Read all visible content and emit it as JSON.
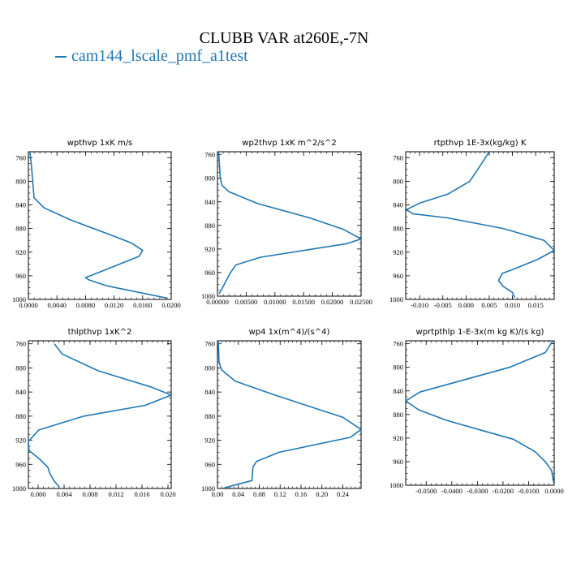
{
  "title": "CLUBB VAR at260E,-7N",
  "legend": {
    "label": "cam144_lscale_pmf_a1test",
    "color": "#1f77b4"
  },
  "chart_data": [
    {
      "type": "line",
      "title": "wpthvp  1xK m/s",
      "xlim": [
        0.0,
        0.02
      ],
      "ylim": [
        1000,
        750
      ],
      "y_axis": "inverted",
      "xticks": [
        0.0,
        0.004,
        0.008,
        0.012,
        0.016,
        0.02
      ],
      "xtick_labels": [
        "0.0000",
        "0.0040",
        "0.0080",
        "0.0120",
        "0.0160",
        "0.0200"
      ],
      "yticks": [
        760,
        800,
        840,
        880,
        920,
        960,
        1000
      ],
      "ytick_labels": [
        "760",
        "800",
        "840",
        "880",
        "920",
        "960",
        "1000"
      ],
      "series": [
        {
          "color": "#1f77b4",
          "x": [
            0.0002,
            0.0004,
            0.0008,
            0.0022,
            0.006,
            0.012,
            0.0145,
            0.016,
            0.0155,
            0.0095,
            0.008,
            0.0085,
            0.011,
            0.0195
          ],
          "y": [
            750,
            770,
            828,
            845,
            866,
            893,
            905,
            917,
            927,
            956,
            963,
            967,
            977,
            998
          ]
        }
      ]
    },
    {
      "type": "line",
      "title": "wp2thvp  1xK m^2/s^2",
      "xlim": [
        0.0,
        0.025
      ],
      "ylim": [
        1000,
        755
      ],
      "y_axis": "inverted",
      "xticks": [
        0.0,
        0.005,
        0.01,
        0.015,
        0.02,
        0.025
      ],
      "xtick_labels": [
        "0.00000",
        "0.00500",
        "0.01000",
        "0.01500",
        "0.02000",
        "0.02500"
      ],
      "yticks": [
        760,
        800,
        840,
        880,
        920,
        960,
        1000
      ],
      "ytick_labels": [
        "760",
        "800",
        "840",
        "880",
        "920",
        "960",
        "1000"
      ],
      "series": [
        {
          "color": "#1f77b4",
          "x": [
            0.0002,
            0.0003,
            0.0005,
            0.0008,
            0.002,
            0.007,
            0.016,
            0.022,
            0.025,
            0.0225,
            0.0075,
            0.0032,
            0.0022,
            0.0013,
            0.0003
          ],
          "y": [
            755,
            770,
            800,
            812,
            823,
            843,
            867,
            887,
            903,
            911,
            934,
            947,
            961,
            978,
            996
          ]
        }
      ]
    },
    {
      "type": "line",
      "title": "rtpthvp  1E-3x(kg/kg) K",
      "xlim": [
        -0.013,
        0.019
      ],
      "ylim": [
        1000,
        750
      ],
      "y_axis": "inverted",
      "xticks": [
        -0.01,
        -0.005,
        0.0,
        0.005,
        0.01,
        0.015
      ],
      "xtick_labels": [
        "-0.010",
        "-0.005",
        "0.000",
        "0.005",
        "0.010",
        "0.015"
      ],
      "yticks": [
        760,
        800,
        840,
        880,
        920,
        960,
        1000
      ],
      "ytick_labels": [
        "760",
        "800",
        "840",
        "880",
        "920",
        "960",
        "1000"
      ],
      "series": [
        {
          "color": "#1f77b4",
          "x": [
            0.005,
            0.0032,
            0.0008,
            -0.004,
            -0.01,
            -0.0128,
            -0.0115,
            -0.004,
            0.008,
            0.0168,
            0.019,
            0.0155,
            0.0105,
            0.0078,
            0.007,
            0.008,
            0.01,
            0.0105
          ],
          "y": [
            750,
            772,
            800,
            822,
            837,
            848,
            855,
            862,
            880,
            900,
            917,
            932,
            948,
            956,
            968,
            978,
            988,
            997
          ]
        }
      ]
    },
    {
      "type": "line",
      "title": "thlpthvp  1xK^2",
      "xlim": [
        -0.0015,
        0.0205
      ],
      "ylim": [
        1000,
        755
      ],
      "y_axis": "inverted",
      "xticks": [
        0.0,
        0.004,
        0.008,
        0.012,
        0.016,
        0.02
      ],
      "xtick_labels": [
        "0.000",
        "0.004",
        "0.008",
        "0.012",
        "0.016",
        "0.020"
      ],
      "yticks": [
        760,
        800,
        840,
        880,
        920,
        960,
        1000
      ],
      "ytick_labels": [
        "760",
        "800",
        "840",
        "880",
        "920",
        "960",
        "1000"
      ],
      "series": [
        {
          "color": "#1f77b4",
          "x": [
            0.0025,
            0.0037,
            0.0093,
            0.0175,
            0.0205,
            0.0165,
            0.007,
            0.0001,
            -0.0015,
            -0.0014,
            0.0003,
            0.0015,
            0.0018,
            0.0025,
            0.0033
          ],
          "y": [
            760,
            777,
            805,
            832,
            845,
            862,
            880,
            903,
            922,
            937,
            952,
            965,
            975,
            988,
            998
          ]
        }
      ]
    },
    {
      "type": "line",
      "title": "wp4  1x(m^4)/(s^4)",
      "xlim": [
        0.0,
        0.275
      ],
      "ylim": [
        1000,
        755
      ],
      "y_axis": "inverted",
      "xticks": [
        0.0,
        0.04,
        0.08,
        0.12,
        0.16,
        0.2,
        0.24
      ],
      "xtick_labels": [
        "0.00",
        "0.04",
        "0.08",
        "0.12",
        "0.16",
        "0.20",
        "0.24"
      ],
      "yticks": [
        760,
        800,
        840,
        880,
        920,
        960,
        1000
      ],
      "ytick_labels": [
        "760",
        "800",
        "840",
        "880",
        "920",
        "960",
        "1000"
      ],
      "series": [
        {
          "color": "#1f77b4",
          "x": [
            0.0015,
            0.003,
            0.008,
            0.034,
            0.11,
            0.24,
            0.275,
            0.255,
            0.118,
            0.075,
            0.068,
            0.067,
            0.066,
            0.03,
            0.01
          ],
          "y": [
            755,
            790,
            803,
            822,
            845,
            882,
            902,
            915,
            940,
            955,
            964,
            975,
            987,
            995,
            1000
          ]
        }
      ]
    },
    {
      "type": "line",
      "title": "wprtpthlp  1-E-3x(m kg K)/(s kg)",
      "xlim": [
        -0.058,
        0.0
      ],
      "ylim": [
        1000,
        755
      ],
      "y_axis": "inverted",
      "xticks": [
        -0.05,
        -0.04,
        -0.03,
        -0.02,
        -0.01,
        0.0
      ],
      "xtick_labels": [
        "-0.0500",
        "-0.0400",
        "-0.0300",
        "-0.0200",
        "-0.0100",
        "0.0000"
      ],
      "yticks": [
        760,
        800,
        840,
        880,
        920,
        960,
        1000
      ],
      "ytick_labels": [
        "760",
        "800",
        "840",
        "880",
        "920",
        "960",
        "1000"
      ],
      "series": [
        {
          "color": "#1f77b4",
          "x": [
            -0.0005,
            -0.0035,
            -0.0175,
            -0.0525,
            -0.058,
            -0.053,
            -0.042,
            -0.016,
            -0.0075,
            -0.0035,
            -0.001,
            0.0
          ],
          "y": [
            755,
            775,
            800,
            842,
            857,
            872,
            890,
            922,
            943,
            960,
            975,
            1000
          ]
        }
      ]
    }
  ]
}
